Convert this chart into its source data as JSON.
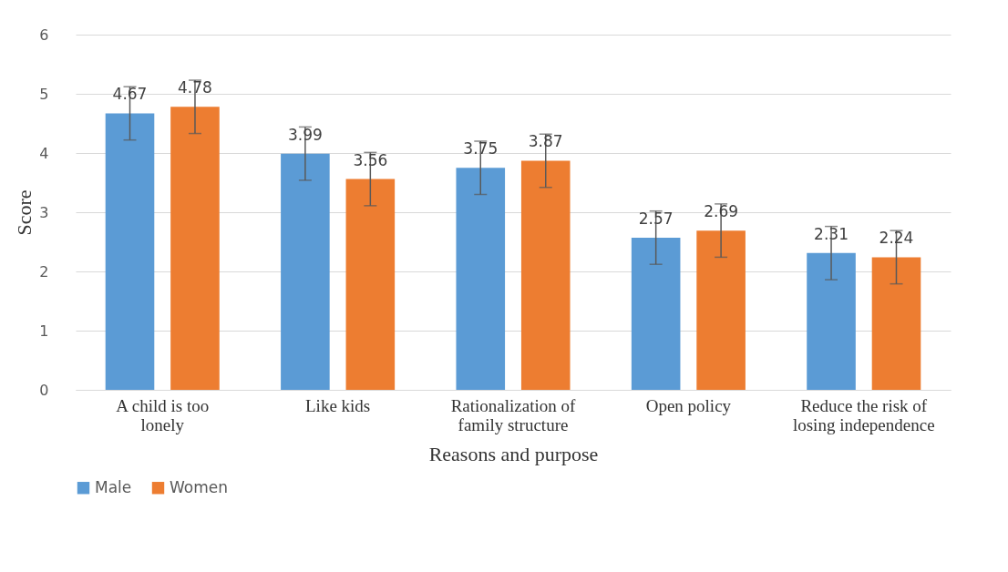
{
  "chart_data": {
    "type": "bar",
    "xlabel": "Reasons and purpose",
    "ylabel": "Score",
    "categories": [
      "A child is too lonely",
      "Like kids",
      "Rationalization of family structure",
      "Open policy",
      "Reduce the risk of losing independence"
    ],
    "series": [
      {
        "name": "Male",
        "color": "#5b9bd5",
        "values": [
          4.67,
          3.99,
          3.75,
          2.57,
          2.31
        ],
        "errors": [
          0.45,
          0.45,
          0.45,
          0.45,
          0.45
        ]
      },
      {
        "name": "Women",
        "color": "#ed7d31",
        "values": [
          4.78,
          3.56,
          3.87,
          2.69,
          2.24
        ],
        "errors": [
          0.45,
          0.45,
          0.45,
          0.45,
          0.45
        ]
      }
    ],
    "ylim": [
      0,
      6
    ],
    "yticks": [
      0,
      1,
      2,
      3,
      4,
      5,
      6
    ],
    "grid": "y",
    "legend": "bottom",
    "data_labels": true
  }
}
